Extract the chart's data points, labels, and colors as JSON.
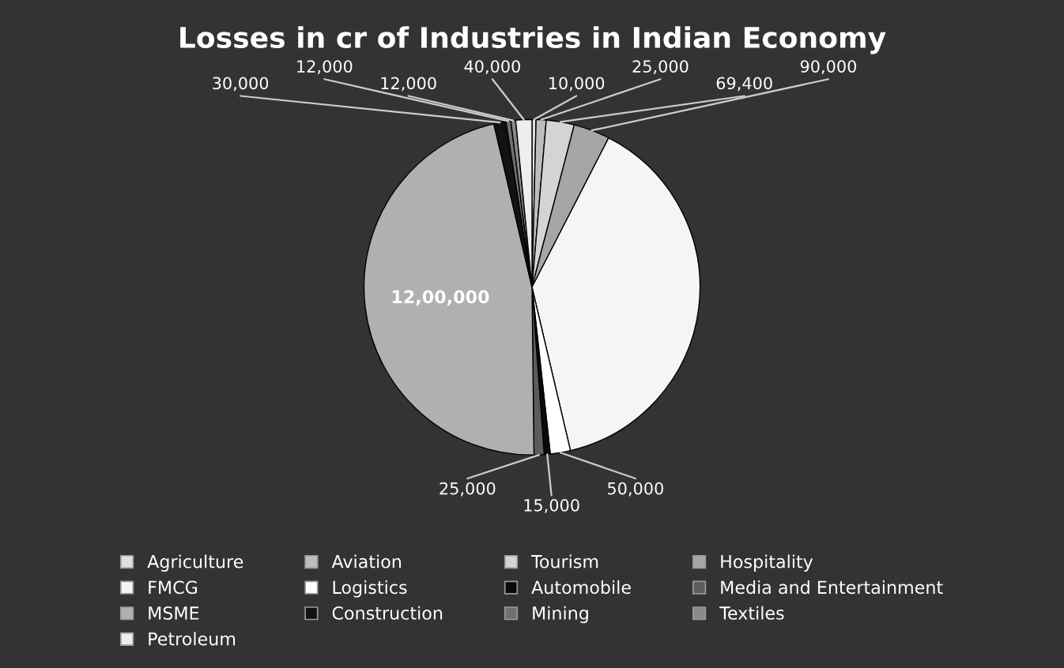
{
  "chart_data": {
    "type": "pie",
    "title": "Losses in cr of Industries in Indian Economy",
    "categories": [
      "Agriculture",
      "Aviation",
      "Tourism",
      "Hospitality",
      "FMCG",
      "Logistics",
      "Automobile",
      "Media and Entertainment",
      "MSME",
      "Construction",
      "Mining",
      "Textiles",
      "Petroleum"
    ],
    "values": [
      10000,
      25000,
      69400,
      90000,
      1000000,
      50000,
      15000,
      25000,
      1200000,
      30000,
      12000,
      12000,
      40000
    ],
    "value_labels": [
      "10,000",
      "25,000",
      "69,400",
      "90,000",
      null,
      "50,000",
      "15,000",
      "25,000",
      "12,00,000",
      "30,000",
      "12,000",
      "12,000",
      "40,000"
    ],
    "colors": [
      "#e0e0e0",
      "#bdbdbd",
      "#d4d4d4",
      "#a6a6a6",
      "#f5f5f5",
      "#ffffff",
      "#0a0a0a",
      "#5c5c5c",
      "#b0b0b0",
      "#121212",
      "#707070",
      "#8a8a8a",
      "#eeeeee"
    ],
    "legend": "bottom"
  }
}
